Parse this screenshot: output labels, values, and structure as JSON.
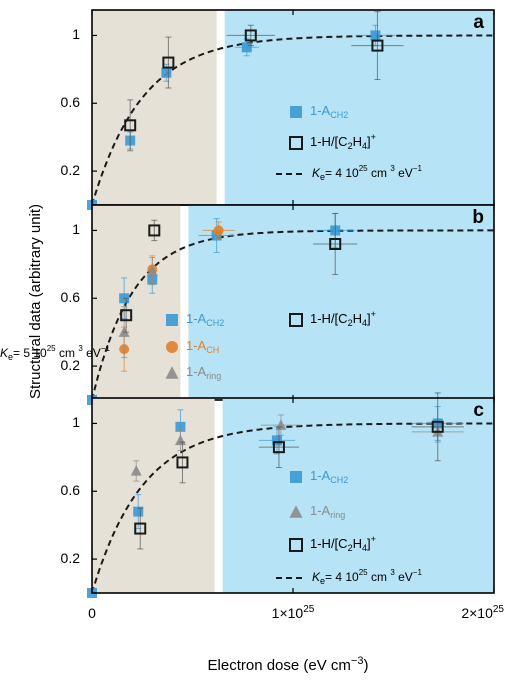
{
  "figure": {
    "ylabel": "Structural data (arbitrary unit)",
    "xlabel": "Electron dose (eV cm",
    "xlabel_sup": "−3",
    "xlabel_close": ")",
    "xlim": [
      0,
      2e+25
    ],
    "ylim": [
      0,
      1.15
    ],
    "xticks": [
      {
        "value": 0,
        "label": "0",
        "sup": ""
      },
      {
        "value": 1e+25,
        "label": "1×10",
        "sup": "25"
      },
      {
        "value": 2e+25,
        "label": "2×10",
        "sup": "25"
      }
    ],
    "yticks": [
      {
        "value": 0.2,
        "label": "0.2"
      },
      {
        "value": 0.6,
        "label": "0.6"
      },
      {
        "value": 1,
        "label": "1"
      }
    ],
    "colors": {
      "shade_beige": "#e6e1d6",
      "shade_blue": "#b6e3f5",
      "a_ch2": "#3b99d3",
      "a_ch": "#e0802c",
      "a_ring": "#8b8b8b",
      "h_open": "#1a1a1a",
      "fit": "#1a1a1a"
    }
  },
  "chart_data": [
    {
      "panel_label": "a",
      "type": "scatter",
      "shade_beige_x": [
        0,
        6.2e+24
      ],
      "shade_blue_x": [
        6.6e+24,
        2e+25
      ],
      "fit": {
        "k_value": "4",
        "k_exp": "25",
        "k_units": "cm",
        "k_units_sup": "3",
        "k_units_tail": "eV",
        "k_units_tail_sup": "−1",
        "k_e": 4e-25,
        "k_prefix": "K",
        "k_sub": "e",
        "k_equal": "= ",
        "k_mult": " 10"
      },
      "series": [
        {
          "name": "1-A",
          "name_sub": "CH2",
          "marker": "square-filled",
          "color_key": "a_ch2",
          "points": [
            {
              "x": 0,
              "y": 0,
              "xerr": 0,
              "yerr": 0
            },
            {
              "x": 1.9e+24,
              "y": 0.38,
              "xerr": 0,
              "yerr": 0.05
            },
            {
              "x": 3.7e+24,
              "y": 0.78,
              "xerr": 0,
              "yerr": 0.05
            },
            {
              "x": 7.7e+24,
              "y": 0.93,
              "xerr": 6e+23,
              "yerr": 0.05
            },
            {
              "x": 1.41e+25,
              "y": 1.0,
              "xerr": 1e+24,
              "yerr": 0.06
            }
          ]
        },
        {
          "name": "1-H/[C",
          "name_sub": "2",
          "name_mid": "H",
          "name_sub2": "4",
          "name_tail": "]",
          "name_sup": "+",
          "marker": "square-open",
          "color_key": "h_open",
          "points": [
            {
              "x": 1.9e+24,
              "y": 0.47,
              "xerr": 0,
              "yerr": 0.15
            },
            {
              "x": 3.8e+24,
              "y": 0.84,
              "xerr": 0,
              "yerr": 0.15
            },
            {
              "x": 7.9e+24,
              "y": 1.0,
              "xerr": 1.2e+24,
              "yerr": 0.06
            },
            {
              "x": 1.42e+25,
              "y": 0.94,
              "xerr": 1.3e+24,
              "yerr": 0.2
            }
          ]
        }
      ]
    },
    {
      "panel_label": "b",
      "type": "scatter",
      "shade_beige_x": [
        0,
        4.4e+24
      ],
      "shade_blue_x": [
        4.8e+24,
        2e+25
      ],
      "fit": {
        "k_value": "5",
        "k_exp": "25",
        "k_units": "cm",
        "k_units_sup": "3",
        "k_units_tail": "eV",
        "k_units_tail_sup": "−1",
        "k_e": 5e-25,
        "k_prefix": "K",
        "k_sub": "e",
        "k_equal": "= ",
        "k_mult": " 10"
      },
      "series": [
        {
          "name": "1-A",
          "name_sub": "CH2",
          "marker": "square-filled",
          "color_key": "a_ch2",
          "points": [
            {
              "x": 0,
              "y": 0,
              "xerr": 0,
              "yerr": 0
            },
            {
              "x": 1.6e+24,
              "y": 0.6,
              "xerr": 0,
              "yerr": 0.12
            },
            {
              "x": 3e+24,
              "y": 0.71,
              "xerr": 0,
              "yerr": 0.08
            },
            {
              "x": 6.2e+24,
              "y": 0.97,
              "xerr": 9e+23,
              "yerr": 0.1
            },
            {
              "x": 1.21e+25,
              "y": 1.0,
              "xerr": 1e+24,
              "yerr": 0.1
            }
          ]
        },
        {
          "name": "1-A",
          "name_sub": "CH",
          "marker": "circle-filled",
          "color_key": "a_ch",
          "points": [
            {
              "x": 1.6e+24,
              "y": 0.3,
              "xerr": 0,
              "yerr": 0.13
            },
            {
              "x": 3e+24,
              "y": 0.77,
              "xerr": 0,
              "yerr": 0.08
            },
            {
              "x": 6.3e+24,
              "y": 1.0,
              "xerr": 8e+23,
              "yerr": 0.05
            }
          ]
        },
        {
          "name": "1-A",
          "name_sub": "ring",
          "marker": "triangle-filled",
          "color_key": "a_ring",
          "points": [
            {
              "x": 1.6e+24,
              "y": 0.4,
              "xerr": 0,
              "yerr": 0.15
            },
            {
              "x": 3e+24,
              "y": 0.76,
              "xerr": 0,
              "yerr": 0.08
            }
          ]
        },
        {
          "name": "1-H/[C",
          "name_sub": "2",
          "name_mid": "H",
          "name_sub2": "4",
          "name_tail": "]",
          "name_sup": "+",
          "marker": "square-open",
          "color_key": "h_open",
          "points": [
            {
              "x": 1.7e+24,
              "y": 0.5,
              "xerr": 0,
              "yerr": 0.1
            },
            {
              "x": 3.1e+24,
              "y": 1.0,
              "xerr": 0,
              "yerr": 0.06
            },
            {
              "x": 1.21e+25,
              "y": 0.92,
              "xerr": 1.1e+24,
              "yerr": 0.18
            }
          ]
        }
      ]
    },
    {
      "panel_label": "c",
      "type": "scatter",
      "shade_beige_x": [
        0,
        6.1e+24
      ],
      "shade_blue_x": [
        6.5e+24,
        2e+25
      ],
      "fit": {
        "k_value": "4",
        "k_exp": "25",
        "k_units": "cm",
        "k_units_sup": "3",
        "k_units_tail": "eV",
        "k_units_tail_sup": "−1",
        "k_e": 4e-25,
        "k_prefix": "K",
        "k_sub": "e",
        "k_equal": "= ",
        "k_mult": " 10"
      },
      "series": [
        {
          "name": "1-A",
          "name_sub": "CH2",
          "marker": "square-filled",
          "color_key": "a_ch2",
          "points": [
            {
              "x": 0,
              "y": 0,
              "xerr": 0,
              "yerr": 0
            },
            {
              "x": 2.3e+24,
              "y": 0.48,
              "xerr": 0,
              "yerr": 0.1
            },
            {
              "x": 4.4e+24,
              "y": 0.98,
              "xerr": 0,
              "yerr": 0.1
            },
            {
              "x": 9.2e+24,
              "y": 0.9,
              "xerr": 9e+23,
              "yerr": 0.08
            },
            {
              "x": 1.72e+25,
              "y": 1.0,
              "xerr": 1.3e+24,
              "yerr": 0.1
            }
          ]
        },
        {
          "name": "1-A",
          "name_sub": "ring",
          "marker": "triangle-filled",
          "color_key": "a_ring",
          "points": [
            {
              "x": 2.2e+24,
              "y": 0.72,
              "xerr": 0,
              "yerr": 0.06
            },
            {
              "x": 4.4e+24,
              "y": 0.9,
              "xerr": 0,
              "yerr": 0.06
            },
            {
              "x": 9.4e+24,
              "y": 0.99,
              "xerr": 1e+24,
              "yerr": 0.06
            },
            {
              "x": 1.72e+25,
              "y": 0.95,
              "xerr": 1.3e+24,
              "yerr": 0.06
            }
          ]
        },
        {
          "name": "1-H/[C",
          "name_sub": "2",
          "name_mid": "H",
          "name_sub2": "4",
          "name_tail": "]",
          "name_sup": "+",
          "marker": "square-open",
          "color_key": "h_open",
          "points": [
            {
              "x": 2.4e+24,
              "y": 0.38,
              "xerr": 0,
              "yerr": 0.12
            },
            {
              "x": 4.5e+24,
              "y": 0.77,
              "xerr": 0,
              "yerr": 0.12
            },
            {
              "x": 9.3e+24,
              "y": 0.86,
              "xerr": 1e+24,
              "yerr": 0.12
            },
            {
              "x": 1.72e+25,
              "y": 0.98,
              "xerr": 1.3e+24,
              "yerr": 0.2
            }
          ]
        }
      ]
    }
  ]
}
